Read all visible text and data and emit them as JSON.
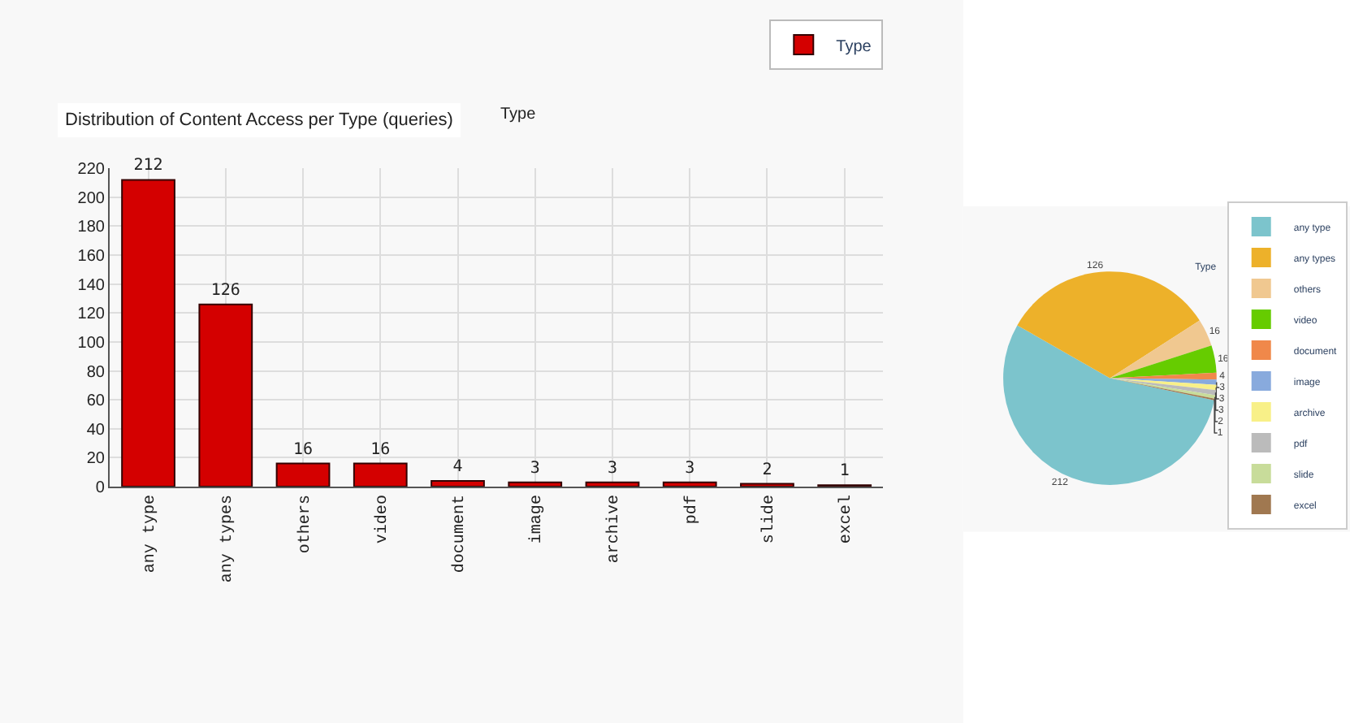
{
  "chart_data": [
    {
      "type": "bar",
      "title": "Distribution of Content Access per Type (queries)",
      "annotations": [
        "Type"
      ],
      "categories": [
        "any type",
        "any types",
        "others",
        "video",
        "document",
        "image",
        "archive",
        "pdf",
        "slide",
        "excel"
      ],
      "series": [
        {
          "name": "Type",
          "color": "#d40000",
          "values": [
            212,
            126,
            16,
            16,
            4,
            3,
            3,
            3,
            2,
            1
          ]
        }
      ],
      "ylim": [
        0,
        220
      ],
      "yticks": [
        0,
        20,
        40,
        60,
        80,
        100,
        120,
        140,
        160,
        180,
        200,
        220
      ],
      "grid": true,
      "legend": "top right",
      "data_labels": true
    },
    {
      "type": "pie",
      "title": "Type",
      "categories": [
        "any type",
        "any types",
        "others",
        "video",
        "document",
        "image",
        "archive",
        "pdf",
        "slide",
        "excel"
      ],
      "values": [
        212,
        126,
        16,
        16,
        4,
        3,
        3,
        3,
        2,
        1
      ],
      "colors": [
        "#7cc4cc",
        "#edb12a",
        "#f0c890",
        "#66cc00",
        "#f0884a",
        "#88aadd",
        "#f8f088",
        "#bbbbbb",
        "#c8dc9a",
        "#a07850"
      ],
      "data_labels": true,
      "legend": "right"
    }
  ]
}
